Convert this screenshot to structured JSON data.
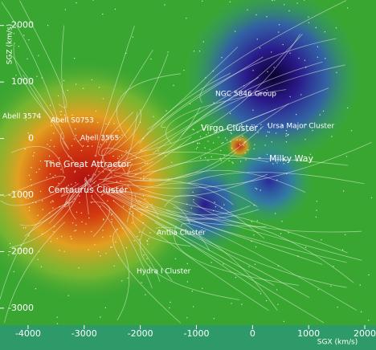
{
  "chart_data": {
    "type": "map",
    "x_label": "SGX (km/s)",
    "y_label": "SGZ (km/s)",
    "xlim": [
      -4500,
      2200
    ],
    "ylim": [
      -3300,
      2450
    ],
    "xticks": [
      -4000,
      -3000,
      -2000,
      -1000,
      0,
      1000,
      2000
    ],
    "yticks": [
      2000,
      1000,
      0,
      -1000,
      -2000,
      -3000
    ],
    "annotations": [
      "Abell 3574",
      "Abell S0753",
      "Abell 3565",
      "NGC 5846 Group",
      "Virgo Cluster",
      "Ursa Major Cluster",
      "The Great Attractor",
      "Milky Way",
      "Centaurus Cluster",
      "Antlia Cluster",
      "Hydra I Cluster"
    ]
  }
}
